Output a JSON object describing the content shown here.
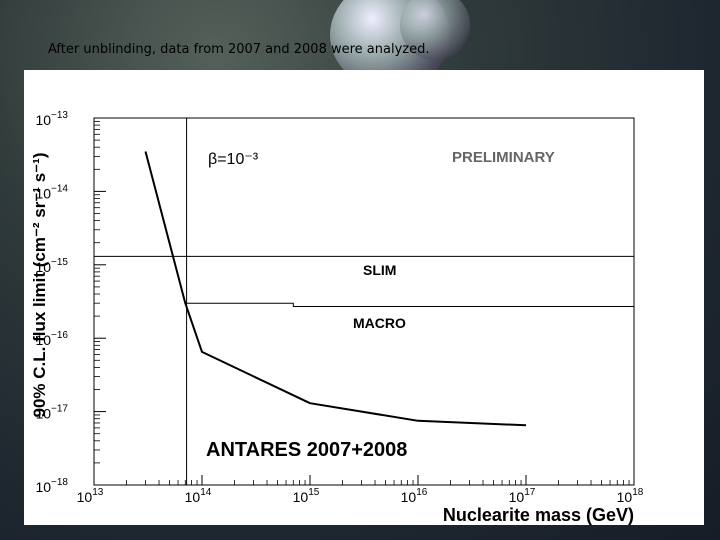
{
  "slide": {
    "caption": "After unblinding, data from 2007 and 2008 were analyzed."
  },
  "chart_data": {
    "type": "line",
    "title": "",
    "xlabel": "Nuclearite mass (GeV)",
    "ylabel": "90% C.L. flux limit (cm⁻² sr⁻¹ s⁻¹)",
    "xscale": "log",
    "yscale": "log",
    "xlim": [
      10000000000000.0,
      1e+18
    ],
    "ylim": [
      1e-18,
      1e-13
    ],
    "x_ticks": [
      {
        "base": "10",
        "exp": "13"
      },
      {
        "base": "10",
        "exp": "14"
      },
      {
        "base": "10",
        "exp": "15"
      },
      {
        "base": "10",
        "exp": "16"
      },
      {
        "base": "10",
        "exp": "17"
      },
      {
        "base": "10",
        "exp": "18"
      }
    ],
    "y_ticks": [
      {
        "base": "10",
        "exp": "−13"
      },
      {
        "base": "10",
        "exp": "−14"
      },
      {
        "base": "10",
        "exp": "−15"
      },
      {
        "base": "10",
        "exp": "−16"
      },
      {
        "base": "10",
        "exp": "−17"
      },
      {
        "base": "10",
        "exp": "−18"
      }
    ],
    "series": [
      {
        "name": "ANTARES 2007+2008",
        "x": [
          30000000000000.0,
          70000000000000.0,
          100000000000000.0,
          1000000000000000.0,
          1e+16,
          1e+17
        ],
        "y": [
          3.5e-14,
          3e-16,
          6.5e-17,
          1.3e-17,
          7.5e-18,
          6.5e-18
        ]
      },
      {
        "name": "SLIM",
        "x": [
          10000000000000.0,
          1e+18
        ],
        "y": [
          1.3e-15,
          1.3e-15
        ]
      },
      {
        "name": "MACRO",
        "x": [
          72000000000000.0,
          700000000000000.0,
          700000000000000.0,
          1e+18
        ],
        "y": [
          3e-16,
          3e-16,
          2.7e-16,
          2.7e-16
        ]
      }
    ],
    "vertical_line": {
      "x": 72000000000000.0
    },
    "annotations": {
      "beta": "β=10⁻³",
      "preliminary": "PRELIMINARY",
      "slim": "SLIM",
      "macro": "MACRO",
      "antares": "ANTARES 2007+2008"
    },
    "grid": false,
    "colors": {
      "line": "#000000",
      "background": "#ffffff",
      "annotation_gray": "#666666"
    }
  }
}
